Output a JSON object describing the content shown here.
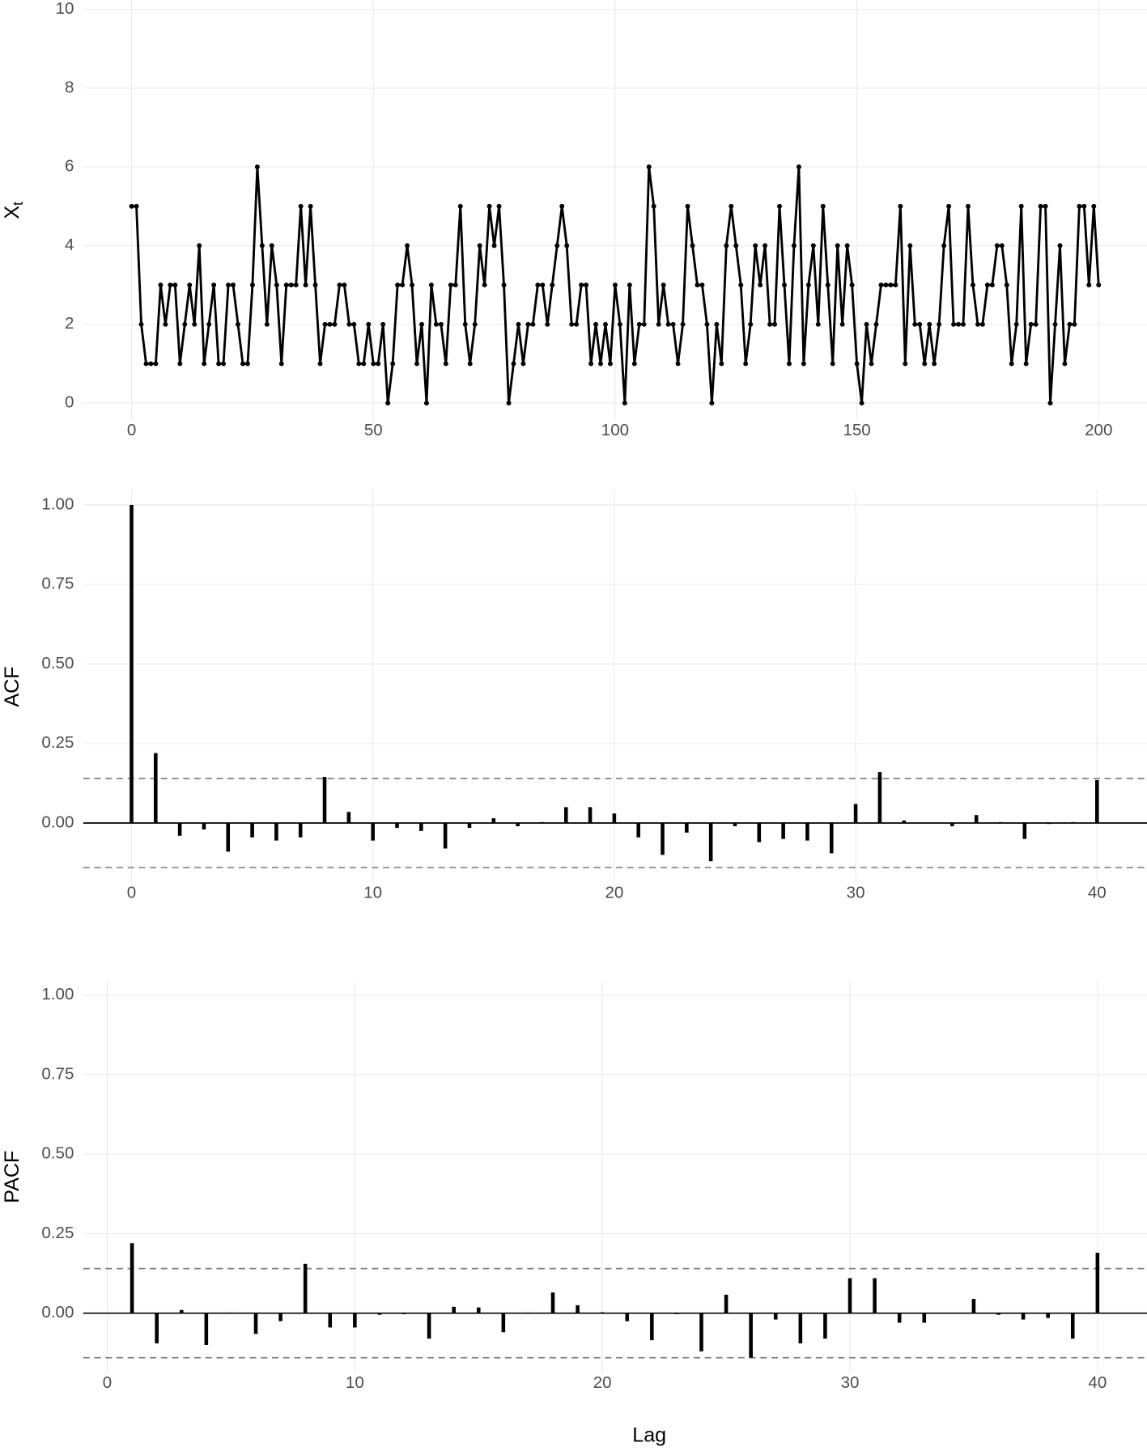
{
  "chart_data": [
    {
      "type": "line",
      "ylabel": "X",
      "ylabel_subscript": "t",
      "color": "#000000",
      "markers": true,
      "grid": true,
      "x": [
        0,
        1,
        2,
        3,
        4,
        5,
        6,
        7,
        8,
        9,
        10,
        11,
        12,
        13,
        14,
        15,
        16,
        17,
        18,
        19,
        20,
        21,
        22,
        23,
        24,
        25,
        26,
        27,
        28,
        29,
        30,
        31,
        32,
        33,
        34,
        35,
        36,
        37,
        38,
        39,
        40,
        41,
        42,
        43,
        44,
        45,
        46,
        47,
        48,
        49,
        50,
        51,
        52,
        53,
        54,
        55,
        56,
        57,
        58,
        59,
        60,
        61,
        62,
        63,
        64,
        65,
        66,
        67,
        68,
        69,
        70,
        71,
        72,
        73,
        74,
        75,
        76,
        77,
        78,
        79,
        80,
        81,
        82,
        83,
        84,
        85,
        86,
        87,
        88,
        89,
        90,
        91,
        92,
        93,
        94,
        95,
        96,
        97,
        98,
        99,
        100,
        101,
        102,
        103,
        104,
        105,
        106,
        107,
        108,
        109,
        110,
        111,
        112,
        113,
        114,
        115,
        116,
        117,
        118,
        119,
        120,
        121,
        122,
        123,
        124,
        125,
        126,
        127,
        128,
        129,
        130,
        131,
        132,
        133,
        134,
        135,
        136,
        137,
        138,
        139,
        140,
        141,
        142,
        143,
        144,
        145,
        146,
        147,
        148,
        149,
        150,
        151,
        152,
        153,
        154,
        155,
        156,
        157,
        158,
        159,
        160,
        161,
        162,
        163,
        164,
        165,
        166,
        167,
        168,
        169,
        170,
        171,
        172,
        173,
        174,
        175,
        176,
        177,
        178,
        179,
        180,
        181,
        182,
        183,
        184,
        185,
        186,
        187,
        188,
        189,
        190,
        191,
        192,
        193,
        194,
        195,
        196,
        197,
        198,
        199,
        200
      ],
      "values": [
        5,
        5,
        2,
        1,
        1,
        1,
        3,
        2,
        3,
        3,
        1,
        2,
        3,
        2,
        4,
        1,
        2,
        3,
        1,
        1,
        3,
        3,
        2,
        1,
        1,
        3,
        6,
        4,
        2,
        4,
        3,
        1,
        3,
        3,
        3,
        5,
        3,
        5,
        3,
        1,
        2,
        2,
        2,
        3,
        3,
        2,
        2,
        1,
        1,
        2,
        1,
        1,
        2,
        0,
        1,
        3,
        3,
        4,
        3,
        1,
        2,
        0,
        3,
        2,
        2,
        1,
        3,
        3,
        5,
        2,
        1,
        2,
        4,
        3,
        5,
        4,
        5,
        3,
        0,
        1,
        2,
        1,
        2,
        2,
        3,
        3,
        2,
        3,
        4,
        5,
        4,
        2,
        2,
        3,
        3,
        1,
        2,
        1,
        2,
        1,
        3,
        2,
        0,
        3,
        1,
        2,
        2,
        6,
        5,
        2,
        3,
        2,
        2,
        1,
        2,
        5,
        4,
        3,
        3,
        2,
        0,
        2,
        1,
        4,
        5,
        4,
        3,
        1,
        2,
        4,
        3,
        4,
        2,
        2,
        5,
        3,
        1,
        4,
        6,
        1,
        3,
        4,
        2,
        5,
        3,
        1,
        4,
        2,
        4,
        3,
        1,
        0,
        2,
        1,
        2,
        3,
        3,
        3,
        3,
        5,
        1,
        4,
        2,
        2,
        1,
        2,
        1,
        2,
        4,
        5,
        2,
        2,
        2,
        5,
        3,
        2,
        2,
        3,
        3,
        4,
        4,
        3,
        1,
        2,
        5,
        1,
        2,
        2,
        5,
        5,
        0,
        2,
        4,
        1,
        2,
        2,
        5,
        5,
        3,
        5,
        3
      ],
      "xlim": [
        -10,
        210
      ],
      "ylim": [
        -0.45,
        10.24
      ],
      "xticks": [
        0,
        50,
        100,
        150,
        200
      ],
      "yticks": [
        0,
        2,
        4,
        6,
        8,
        10
      ]
    },
    {
      "type": "bar",
      "ylabel": "ACF",
      "color": "#000000",
      "grid": true,
      "hline": 0,
      "ci": [
        0.14,
        -0.14
      ],
      "ci_color": "#808080",
      "x": [
        0,
        1,
        2,
        3,
        4,
        5,
        6,
        7,
        8,
        9,
        10,
        11,
        12,
        13,
        14,
        15,
        16,
        17,
        18,
        19,
        20,
        21,
        22,
        23,
        24,
        25,
        26,
        27,
        28,
        29,
        30,
        31,
        32,
        33,
        34,
        35,
        36,
        37,
        38,
        39,
        40
      ],
      "values": [
        1.0,
        0.22,
        -0.04,
        -0.02,
        -0.09,
        -0.045,
        -0.055,
        -0.045,
        0.145,
        0.035,
        -0.055,
        -0.015,
        -0.025,
        -0.08,
        -0.015,
        0.015,
        -0.01,
        0.003,
        0.05,
        0.05,
        0.03,
        -0.045,
        -0.1,
        -0.03,
        -0.12,
        -0.01,
        -0.06,
        -0.05,
        -0.055,
        -0.095,
        0.06,
        0.16,
        0.008,
        0.002,
        -0.01,
        0.025,
        0.003,
        -0.05,
        -0.003,
        0.003,
        0.135
      ],
      "xlim": [
        -2,
        42.07
      ],
      "ylim": [
        -0.189,
        1.0465
      ],
      "xticks": [
        0,
        10,
        20,
        30,
        40
      ],
      "yticks": [
        {
          "value": 0,
          "label": "0.00"
        },
        {
          "value": 0.25,
          "label": "0.25"
        },
        {
          "value": 0.5,
          "label": "0.50"
        },
        {
          "value": 0.75,
          "label": "0.75"
        },
        {
          "value": 1,
          "label": "1.00"
        }
      ]
    },
    {
      "type": "bar",
      "ylabel": "PACF",
      "xlabel": "Lag",
      "color": "#000000",
      "grid": true,
      "hline": 0,
      "ci": [
        0.14,
        -0.14
      ],
      "ci_color": "#808080",
      "x": [
        1,
        2,
        3,
        4,
        5,
        6,
        7,
        8,
        9,
        10,
        11,
        12,
        13,
        14,
        15,
        16,
        17,
        18,
        19,
        20,
        21,
        22,
        23,
        24,
        25,
        26,
        27,
        28,
        29,
        30,
        31,
        32,
        33,
        34,
        35,
        36,
        37,
        38,
        39,
        40
      ],
      "values": [
        0.22,
        -0.095,
        0.01,
        -0.1,
        0.002,
        -0.065,
        -0.025,
        0.155,
        -0.045,
        -0.045,
        -0.005,
        -0.003,
        -0.08,
        0.02,
        0.018,
        -0.06,
        0.002,
        0.065,
        0.025,
        0.003,
        -0.025,
        -0.085,
        -0.003,
        -0.12,
        0.058,
        -0.14,
        -0.02,
        -0.095,
        -0.08,
        0.11,
        0.11,
        -0.03,
        -0.03,
        0.001,
        0.045,
        -0.005,
        -0.02,
        -0.015,
        -0.08,
        0.19
      ],
      "xlim": [
        -0.97,
        42.0
      ],
      "ylim": [
        -0.189,
        1.0465
      ],
      "xticks": [
        0,
        10,
        20,
        30,
        40
      ],
      "yticks": [
        {
          "value": 0,
          "label": "0.00"
        },
        {
          "value": 0.25,
          "label": "0.25"
        },
        {
          "value": 0.5,
          "label": "0.50"
        },
        {
          "value": 0.75,
          "label": "0.75"
        },
        {
          "value": 1,
          "label": "1.00"
        }
      ]
    }
  ]
}
